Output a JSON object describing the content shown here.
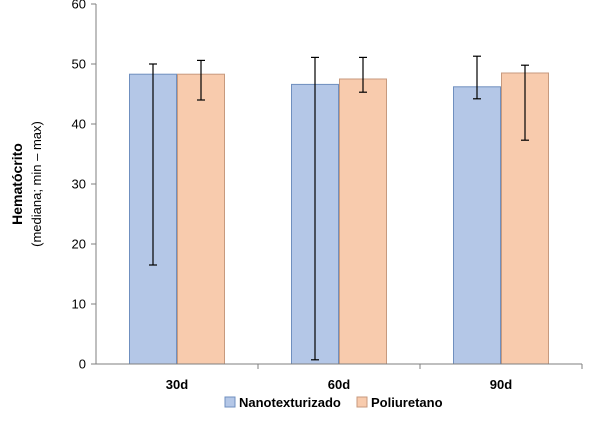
{
  "chart_data": {
    "type": "bar",
    "title": "",
    "xlabel": "",
    "ylabel": "Hematócrito",
    "ylabel_sub": "(mediana;  min – max)",
    "categories": [
      "30d",
      "60d",
      "90d"
    ],
    "ylim": [
      0,
      60
    ],
    "yticks": [
      0,
      10,
      20,
      30,
      40,
      50,
      60
    ],
    "grid": false,
    "legend_position": "bottom",
    "series": [
      {
        "name": "Nanotexturizado",
        "color": "#b4c7e7",
        "stroke": "#6f8fbf",
        "values": [
          48.3,
          46.6,
          46.2
        ],
        "min": [
          16.5,
          0.7,
          44.2
        ],
        "max": [
          50.0,
          51.1,
          51.3
        ]
      },
      {
        "name": "Poliuretano",
        "color": "#f8cbad",
        "stroke": "#c79a7e",
        "values": [
          48.3,
          47.5,
          48.5
        ],
        "min": [
          44.0,
          45.3,
          37.3
        ],
        "max": [
          50.6,
          51.1,
          49.8
        ]
      }
    ]
  }
}
